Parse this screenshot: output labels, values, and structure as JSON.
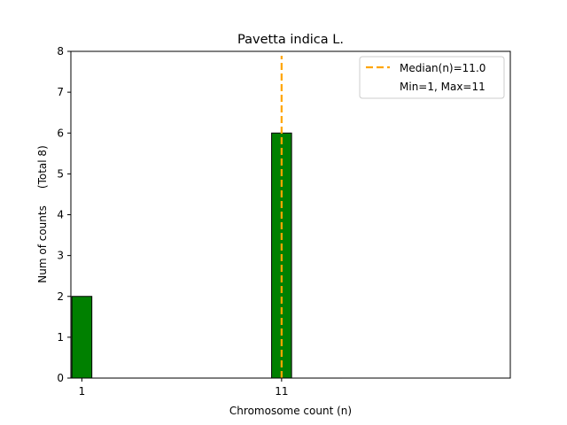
{
  "chart_data": {
    "type": "bar",
    "title": "Pavetta indica L.",
    "xlabel": "Chromosome count (n)",
    "ylabel": "Num of counts     (Total 8)",
    "xlim": [
      0.45,
      22.45
    ],
    "ylim": [
      0,
      8
    ],
    "x_ticks": [
      1,
      11
    ],
    "y_ticks": [
      0,
      1,
      2,
      3,
      4,
      5,
      6,
      7,
      8
    ],
    "bins": [
      {
        "x_start": 0.5,
        "x_end": 1.5,
        "value": 2
      },
      {
        "x_start": 1.5,
        "x_end": 10.5,
        "value": 0
      },
      {
        "x_start": 10.5,
        "x_end": 11.5,
        "value": 6
      },
      {
        "x_start": 11.5,
        "x_end": 14.0,
        "value": 0
      }
    ],
    "bar_color": "#008000",
    "median": {
      "value": 11.0,
      "color": "#ffa500",
      "style": "dashed"
    },
    "legend": {
      "position": "top-right",
      "entries": [
        "Median(n)=11.0",
        "Min=1, Max=11"
      ]
    }
  }
}
